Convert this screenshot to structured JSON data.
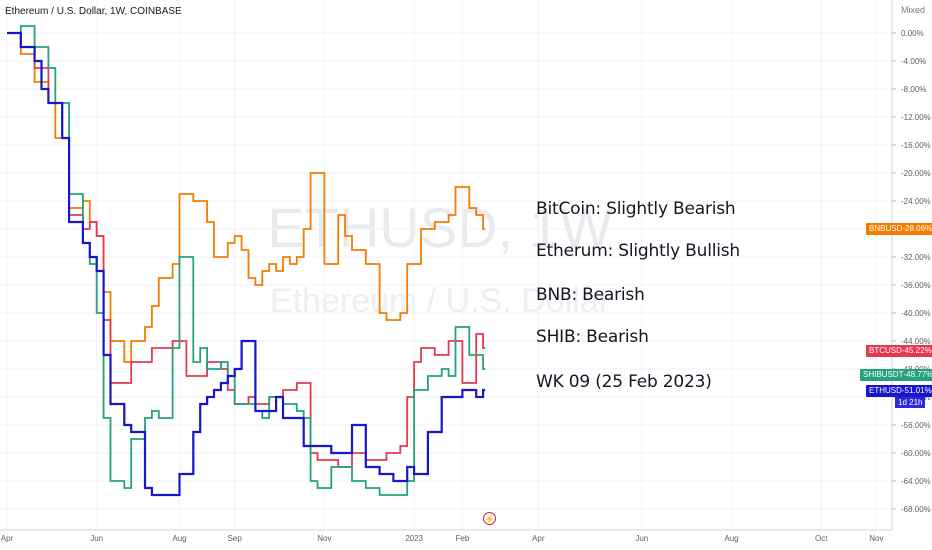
{
  "header": {
    "title": "Ethereum / U.S. Dollar, 1W, COINBASE",
    "scale_mode": "Mixed"
  },
  "watermark": {
    "symbol": "ETHUSD, 1W",
    "name": "Ethereum / U.S. Dollar"
  },
  "annotations": [
    "BitCoin: Slightly Bearish",
    "Etherum: Slightly Bullish",
    "BNB: Bearish",
    "SHIB: Bearish",
    "WK 09 (25 Feb 2023)"
  ],
  "countdown": "1d 21h",
  "chart_data": {
    "type": "line",
    "y_unit": "%",
    "ylim": [
      -70,
      2
    ],
    "y_ticks": [
      "0.00%",
      "-4.00%",
      "-8.00%",
      "-12.00%",
      "-16.00%",
      "-20.00%",
      "-24.00%",
      "-28.00%",
      "-32.00%",
      "-36.00%",
      "-40.00%",
      "-44.00%",
      "-48.00%",
      "-52.00%",
      "-56.00%",
      "-60.00%",
      "-64.00%",
      "-68.00%"
    ],
    "y_tick_values": [
      0,
      -4,
      -8,
      -12,
      -16,
      -20,
      -24,
      -28,
      -32,
      -36,
      -40,
      -44,
      -48,
      -52,
      -56,
      -60,
      -64,
      -68
    ],
    "x_ticks": [
      "Apr",
      "Jun",
      "Aug",
      "Sep",
      "Nov",
      "2023",
      "Feb",
      "Apr",
      "Jun",
      "Aug",
      "Oct",
      "Nov"
    ],
    "x_tick_weeks": [
      0,
      13,
      25,
      33,
      46,
      59,
      66,
      77,
      92,
      105,
      118,
      126
    ],
    "weeks": 70,
    "series": [
      {
        "name": "BNBUSD",
        "color": "#f57c00",
        "last_label": "-28.06%",
        "values": [
          0,
          0,
          -3,
          -3,
          -7,
          -7,
          -10,
          -15,
          -15,
          -25,
          -25,
          -24,
          -27,
          -29,
          -37,
          -44,
          -44,
          -47,
          -44,
          -44,
          -42,
          -39,
          -35,
          -35,
          -33,
          -23,
          -23,
          -24,
          -24,
          -27,
          -32,
          -32,
          -30,
          -29,
          -31,
          -35,
          -36,
          -34,
          -33,
          -34,
          -32,
          -33,
          -32,
          -28,
          -20,
          -20,
          -33,
          -33,
          -26,
          -29,
          -31,
          -31,
          -33,
          -33,
          -40,
          -41,
          -41,
          -40,
          -33,
          -33,
          -28,
          -28,
          -27,
          -27,
          -26,
          -22,
          -22,
          -25,
          -26,
          -28
        ]
      },
      {
        "name": "BTCUSD",
        "color": "#e53950",
        "last_label": "-45.22%",
        "values": [
          0,
          0,
          -2,
          -2,
          -5,
          -5,
          -10,
          -10,
          -15,
          -26,
          -26,
          -28,
          -27,
          -29,
          -41,
          -50,
          -50,
          -50,
          -47,
          -47,
          -47,
          -45,
          -45,
          -45,
          -44,
          -44,
          -49,
          -49,
          -49,
          -47,
          -47,
          -48,
          -51,
          -53,
          -53,
          -52,
          -53,
          -53,
          -52,
          -52,
          -51,
          -51,
          -50,
          -50,
          -60,
          -61,
          -61,
          -61,
          -62,
          -62,
          -60,
          -60,
          -61,
          -61,
          -61,
          -60,
          -60,
          -59,
          -52,
          -47,
          -45,
          -45,
          -46,
          -46,
          -44,
          -44,
          -50,
          -50,
          -43,
          -45
        ]
      },
      {
        "name": "SHIBUSDT",
        "color": "#26a07f",
        "last_label": "-48.77%",
        "values": [
          0,
          0,
          1,
          1,
          -2,
          -2,
          -5,
          -10,
          -10,
          -23,
          -23,
          -30,
          -33,
          -40,
          -55,
          -64,
          -64,
          -65,
          -58,
          -58,
          -55,
          -54,
          -55,
          -55,
          -45,
          -32,
          -32,
          -47,
          -45,
          -48,
          -48,
          -47,
          -49,
          -53,
          -53,
          -53,
          -54,
          -55,
          -52,
          -52,
          -53,
          -53,
          -54,
          -55,
          -64,
          -65,
          -65,
          -62,
          -62,
          -62,
          -64,
          -64,
          -65,
          -65,
          -66,
          -66,
          -66,
          -66,
          -64,
          -51,
          -51,
          -49,
          -49,
          -48,
          -49,
          -42,
          -42,
          -46,
          -46,
          -48
        ]
      },
      {
        "name": "ETHUSD",
        "color": "#1717c9",
        "last_label": "-51.01%",
        "values": [
          0,
          0,
          -2,
          -2,
          -4,
          -8,
          -10,
          -10,
          -15,
          -27,
          -27,
          -30,
          -32,
          -34,
          -46,
          -53,
          -53,
          -56,
          -57,
          -57,
          -65,
          -66,
          -66,
          -66,
          -66,
          -63,
          -63,
          -57,
          -53,
          -52,
          -51,
          -50,
          -49,
          -48,
          -44,
          -44,
          -54,
          -54,
          -54,
          -52,
          -55,
          -55,
          -55,
          -59,
          -59,
          -59,
          -59,
          -60,
          -60,
          -60,
          -56,
          -56,
          -62,
          -62,
          -63,
          -63,
          -64,
          -64,
          -62,
          -63,
          -63,
          -57,
          -57,
          -52,
          -52,
          -52,
          -51,
          -51,
          -52,
          -51
        ]
      }
    ]
  }
}
